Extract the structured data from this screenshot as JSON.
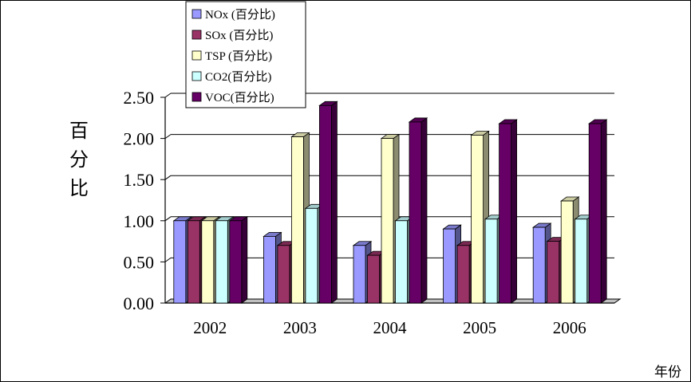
{
  "chart_data": {
    "type": "bar",
    "categories": [
      "2002",
      "2003",
      "2004",
      "2005",
      "2006"
    ],
    "series": [
      {
        "name": "NOx (百分比)",
        "color": "#9999ff",
        "values": [
          1.0,
          0.81,
          0.7,
          0.9,
          0.92
        ]
      },
      {
        "name": "SOx (百分比)",
        "color": "#993366",
        "values": [
          1.0,
          0.7,
          0.58,
          0.7,
          0.75
        ]
      },
      {
        "name": "TSP (百分比)",
        "color": "#ffffcc",
        "values": [
          1.0,
          2.02,
          2.0,
          2.04,
          1.24
        ]
      },
      {
        "name": "CO2(百分比)",
        "color": "#ccffff",
        "values": [
          1.0,
          1.15,
          1.0,
          1.02,
          1.02
        ]
      },
      {
        "name": "VOC(百分比)",
        "color": "#660066",
        "values": [
          1.0,
          2.4,
          2.2,
          2.18,
          2.18
        ]
      }
    ],
    "ylim": [
      0,
      2.5
    ],
    "yticks": [
      "0.00",
      "0.50",
      "1.00",
      "1.50",
      "2.00",
      "2.50"
    ],
    "ylabel": [
      "百",
      "分",
      "比"
    ],
    "xlabel": "年份",
    "grid": true,
    "legend_position": "top-left"
  }
}
